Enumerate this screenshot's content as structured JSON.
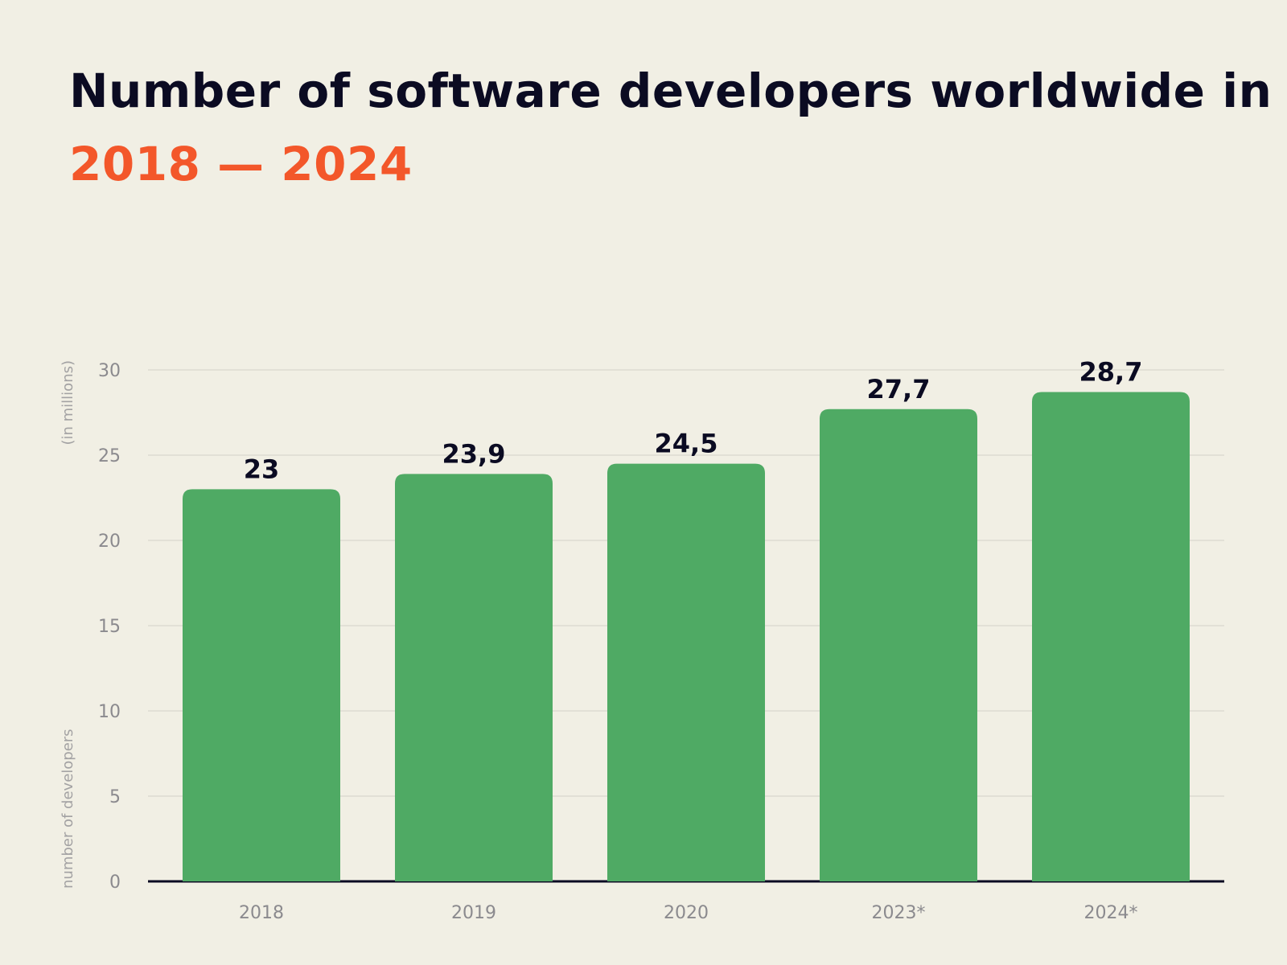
{
  "chart_data": {
    "type": "bar",
    "title_prefix": "Number of software developers worldwide in",
    "title_highlight": "2018 — 2024",
    "ylabel": "number of developers",
    "ylabel_unit": "(in millions)",
    "categories": [
      "2018",
      "2019",
      "2020",
      "2023*",
      "2024*"
    ],
    "values": [
      23,
      23.9,
      24.5,
      27.7,
      28.7
    ],
    "value_labels": [
      "23",
      "23,9",
      "24,5",
      "27,7",
      "28,7"
    ],
    "ylim": [
      0,
      30
    ],
    "yticks": [
      0,
      5,
      10,
      15,
      20,
      25,
      30
    ],
    "grid": true,
    "colors": {
      "bar": "#4faa64",
      "accent": "#f3572a",
      "title": "#0b0b22",
      "axis": "#0b0b22",
      "grid": "#dedcd2"
    }
  }
}
